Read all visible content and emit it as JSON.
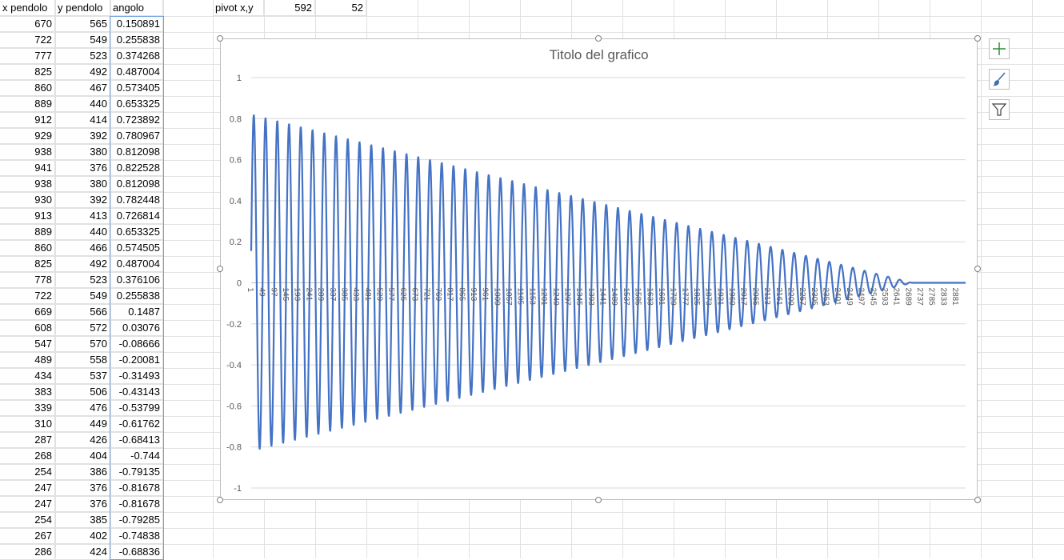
{
  "sheet": {
    "headers": {
      "a": "x pendolo",
      "b": "y pendolo",
      "c": "angolo"
    },
    "pivot": {
      "label": "pivot x,y",
      "x": "592",
      "y": "52"
    },
    "rows": [
      [
        "670",
        "565",
        "0.150891"
      ],
      [
        "722",
        "549",
        "0.255838"
      ],
      [
        "777",
        "523",
        "0.374268"
      ],
      [
        "825",
        "492",
        "0.487004"
      ],
      [
        "860",
        "467",
        "0.573405"
      ],
      [
        "889",
        "440",
        "0.653325"
      ],
      [
        "912",
        "414",
        "0.723892"
      ],
      [
        "929",
        "392",
        "0.780967"
      ],
      [
        "938",
        "380",
        "0.812098"
      ],
      [
        "941",
        "376",
        "0.822528"
      ],
      [
        "938",
        "380",
        "0.812098"
      ],
      [
        "930",
        "392",
        "0.782448"
      ],
      [
        "913",
        "413",
        "0.726814"
      ],
      [
        "889",
        "440",
        "0.653325"
      ],
      [
        "860",
        "466",
        "0.574505"
      ],
      [
        "825",
        "492",
        "0.487004"
      ],
      [
        "778",
        "523",
        "0.376106"
      ],
      [
        "722",
        "549",
        "0.255838"
      ],
      [
        "669",
        "566",
        "0.1487"
      ],
      [
        "608",
        "572",
        "0.03076"
      ],
      [
        "547",
        "570",
        "-0.08666"
      ],
      [
        "489",
        "558",
        "-0.20081"
      ],
      [
        "434",
        "537",
        "-0.31493"
      ],
      [
        "383",
        "506",
        "-0.43143"
      ],
      [
        "339",
        "476",
        "-0.53799"
      ],
      [
        "310",
        "449",
        "-0.61762"
      ],
      [
        "287",
        "426",
        "-0.68413"
      ],
      [
        "268",
        "404",
        "-0.744"
      ],
      [
        "254",
        "386",
        "-0.79135"
      ],
      [
        "247",
        "376",
        "-0.81678"
      ],
      [
        "247",
        "376",
        "-0.81678"
      ],
      [
        "254",
        "385",
        "-0.79285"
      ],
      [
        "267",
        "402",
        "-0.74838"
      ],
      [
        "286",
        "424",
        "-0.68836"
      ]
    ]
  },
  "chart_toolbar": {
    "add_icon": "plus-icon",
    "style_icon": "brush-icon",
    "filter_icon": "funnel-icon"
  },
  "chart_data": {
    "type": "line",
    "title": "Titolo del grafico",
    "ylim": [
      -1,
      1
    ],
    "yticks": [
      "1",
      "0.8",
      "0.6",
      "0.4",
      "0.2",
      "0",
      "-0.2",
      "-0.4",
      "-0.6",
      "-0.8",
      "-1"
    ],
    "xticks": [
      "1",
      "49",
      "97",
      "145",
      "193",
      "241",
      "289",
      "337",
      "385",
      "433",
      "481",
      "529",
      "577",
      "625",
      "673",
      "721",
      "769",
      "817",
      "865",
      "913",
      "961",
      "1009",
      "1057",
      "1105",
      "1153",
      "1201",
      "1249",
      "1297",
      "1345",
      "1393",
      "1441",
      "1489",
      "1537",
      "1585",
      "1633",
      "1681",
      "1729",
      "1777",
      "1825",
      "1873",
      "1921",
      "1969",
      "2017",
      "2065",
      "2113",
      "2161",
      "2209",
      "2257",
      "2305",
      "2353",
      "2401",
      "2449",
      "2497",
      "2545",
      "2593",
      "2641",
      "2689",
      "2737",
      "2785",
      "2833",
      "2881"
    ],
    "series": [
      {
        "color": "#4472c4",
        "n_points": 2920,
        "amplitude_start": 0.82,
        "period_points": 48,
        "settle_point": 2700,
        "end_value": 0.0
      }
    ],
    "grid": true
  }
}
